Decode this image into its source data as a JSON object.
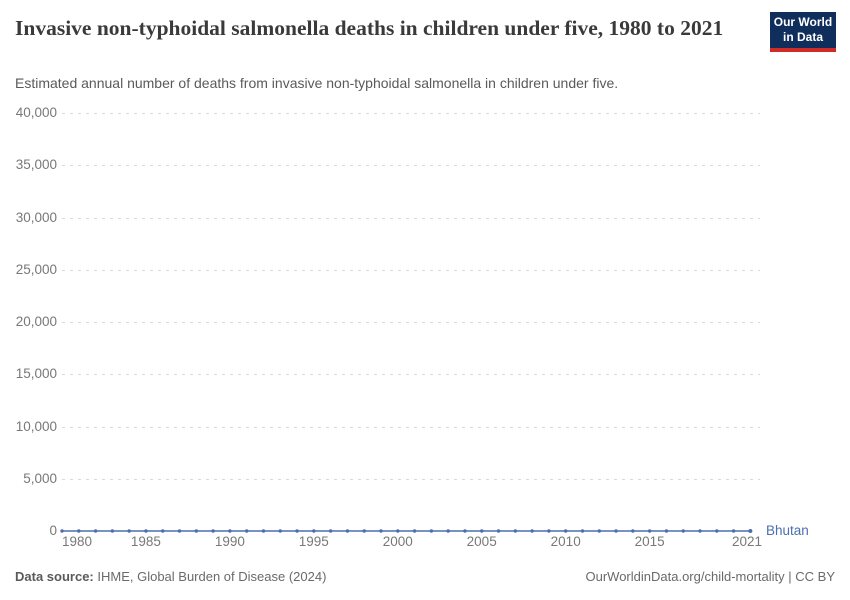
{
  "header": {
    "title": "Invasive non-typhoidal salmonella deaths in children under five, 1980 to 2021",
    "subtitle": "Estimated annual number of deaths from invasive non-typhoidal salmonella in children under five.",
    "logo": {
      "line1": "Our World",
      "line2": "in Data",
      "bg_color": "#102e5c",
      "stripe_color": "#cf2b27"
    }
  },
  "chart_data": {
    "type": "line",
    "title": "Invasive non-typhoidal salmonella deaths in children under five, 1980 to 2021",
    "xlabel": "",
    "ylabel": "",
    "ylim": [
      0,
      40000
    ],
    "grid": "horizontal-dashed",
    "legend_position": "line-end-label",
    "y_tick_labels": [
      "40,000",
      "35,000",
      "30,000",
      "25,000",
      "20,000",
      "15,000",
      "10,000",
      "5,000",
      "0"
    ],
    "x_tick_labels": [
      "1980",
      "1985",
      "1990",
      "1995",
      "2000",
      "2005",
      "2010",
      "2015",
      "2021"
    ],
    "x": [
      1980,
      1981,
      1982,
      1983,
      1984,
      1985,
      1986,
      1987,
      1988,
      1989,
      1990,
      1991,
      1992,
      1993,
      1994,
      1995,
      1996,
      1997,
      1998,
      1999,
      2000,
      2001,
      2002,
      2003,
      2004,
      2005,
      2006,
      2007,
      2008,
      2009,
      2010,
      2011,
      2012,
      2013,
      2014,
      2015,
      2016,
      2017,
      2018,
      2019,
      2020,
      2021
    ],
    "series": [
      {
        "name": "Bhutan",
        "color": "#4d6fae",
        "values": [
          0,
          0,
          0,
          0,
          0,
          0,
          0,
          0,
          0,
          0,
          0,
          0,
          0,
          0,
          0,
          0,
          0,
          0,
          0,
          0,
          0,
          0,
          0,
          0,
          0,
          0,
          0,
          0,
          0,
          0,
          0,
          0,
          0,
          0,
          0,
          0,
          0,
          0,
          0,
          0,
          0,
          0
        ]
      }
    ]
  },
  "entity_label": "Bhutan",
  "footer": {
    "source_label": "Data source:",
    "source_value": " IHME, Global Burden of Disease (2024)",
    "credit": "OurWorldinData.org/child-mortality | CC BY"
  }
}
